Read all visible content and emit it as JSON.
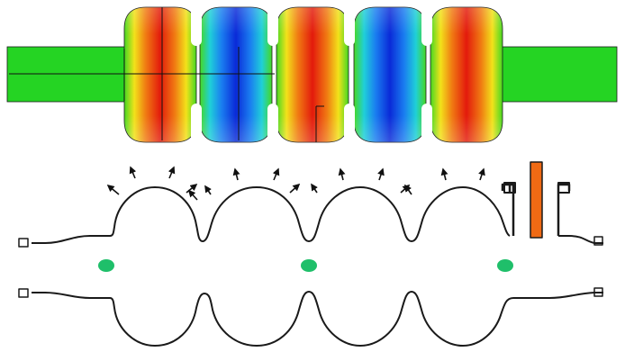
{
  "figure": {
    "colors": {
      "background": "#ffffff",
      "field_low": "#0a2ad8",
      "field_mid": "#25d423",
      "field_high": "#e31a0c",
      "outline": "#1a1a1a",
      "beam_dot": "#1fbf6a",
      "rod": "#f06a14"
    },
    "field_map": {
      "cell_count": 5,
      "field_pattern": [
        "high",
        "low",
        "high",
        "low",
        "high"
      ],
      "cut_lines": 3
    },
    "cavity_profile": {
      "cell_count": 4,
      "beam_axis_markers": 3,
      "force_arrows": 16,
      "coupler": {
        "parts": [
          "left-hook",
          "rod",
          "right-hook"
        ]
      }
    }
  }
}
